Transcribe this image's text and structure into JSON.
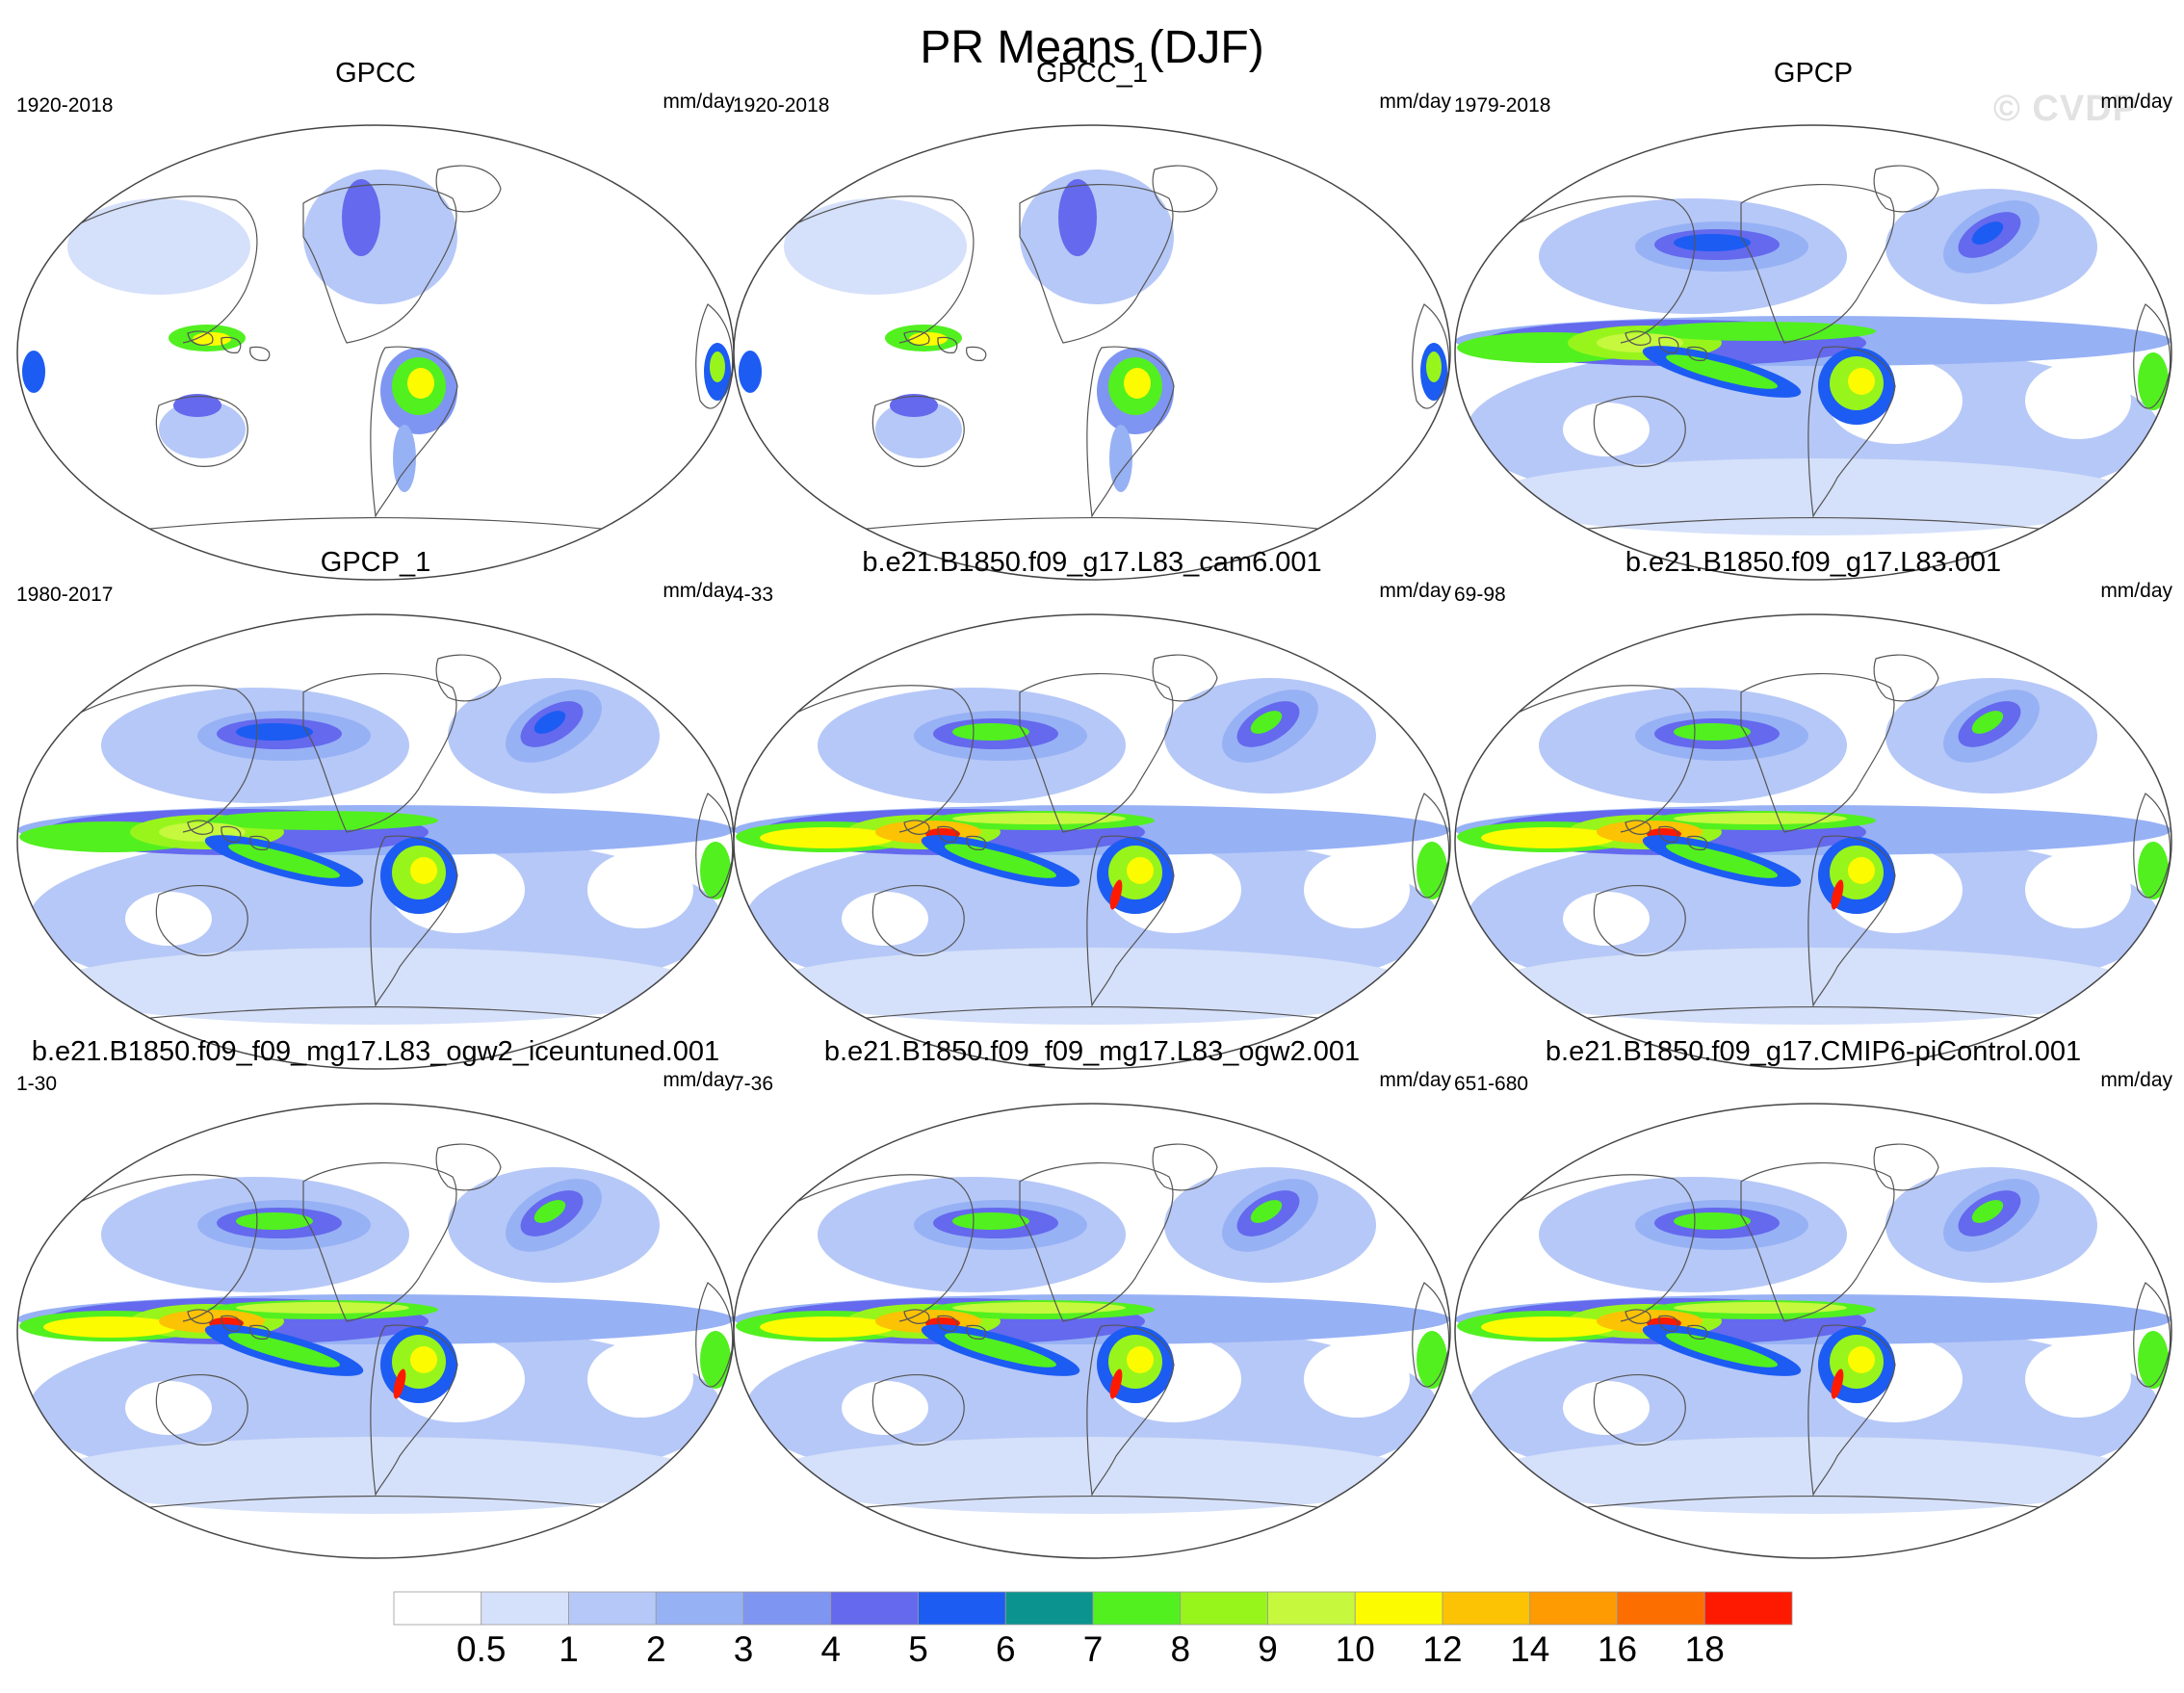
{
  "figure": {
    "title": "PR Means (DJF)",
    "watermark": "© CVDP"
  },
  "chart_data": {
    "type": "heatmap",
    "projection": "robinson",
    "units": "mm/day",
    "panels": [
      {
        "title": "GPCC",
        "years": "1920-2018",
        "units": "mm/day",
        "kind": "land"
      },
      {
        "title": "GPCC_1",
        "years": "1920-2018",
        "units": "mm/day",
        "kind": "land"
      },
      {
        "title": "GPCP",
        "years": "1979-2018",
        "units": "mm/day",
        "kind": "obs"
      },
      {
        "title": "GPCP_1",
        "years": "1980-2017",
        "units": "mm/day",
        "kind": "obs"
      },
      {
        "title": "b.e21.B1850.f09_g17.L83_cam6.001",
        "years": "4-33",
        "units": "mm/day",
        "kind": "model"
      },
      {
        "title": "b.e21.B1850.f09_g17.L83.001",
        "years": "69-98",
        "units": "mm/day",
        "kind": "model"
      },
      {
        "title": "b.e21.B1850.f09_f09_mg17.L83_ogw2_iceuntuned.001",
        "years": "1-30",
        "units": "mm/day",
        "kind": "model"
      },
      {
        "title": "b.e21.B1850.f09_f09_mg17.L83_ogw2.001",
        "years": "7-36",
        "units": "mm/day",
        "kind": "model"
      },
      {
        "title": "b.e21.B1850.f09_g17.CMIP6-piControl.001",
        "years": "651-680",
        "units": "mm/day",
        "kind": "model"
      }
    ],
    "colorbar": {
      "levels": [
        "0.5",
        "1",
        "2",
        "3",
        "4",
        "5",
        "6",
        "7",
        "8",
        "9",
        "10",
        "12",
        "14",
        "16",
        "18"
      ],
      "colors": [
        "#ffffff",
        "#d5e0fa",
        "#b6c8f7",
        "#97b1f5",
        "#7f95f2",
        "#6469ed",
        "#1c5cf2",
        "#0b938f",
        "#52f01f",
        "#98f51b",
        "#c6f83e",
        "#fdfb00",
        "#fcc204",
        "#fe9a02",
        "#fd6e01",
        "#fe1a00"
      ]
    }
  }
}
